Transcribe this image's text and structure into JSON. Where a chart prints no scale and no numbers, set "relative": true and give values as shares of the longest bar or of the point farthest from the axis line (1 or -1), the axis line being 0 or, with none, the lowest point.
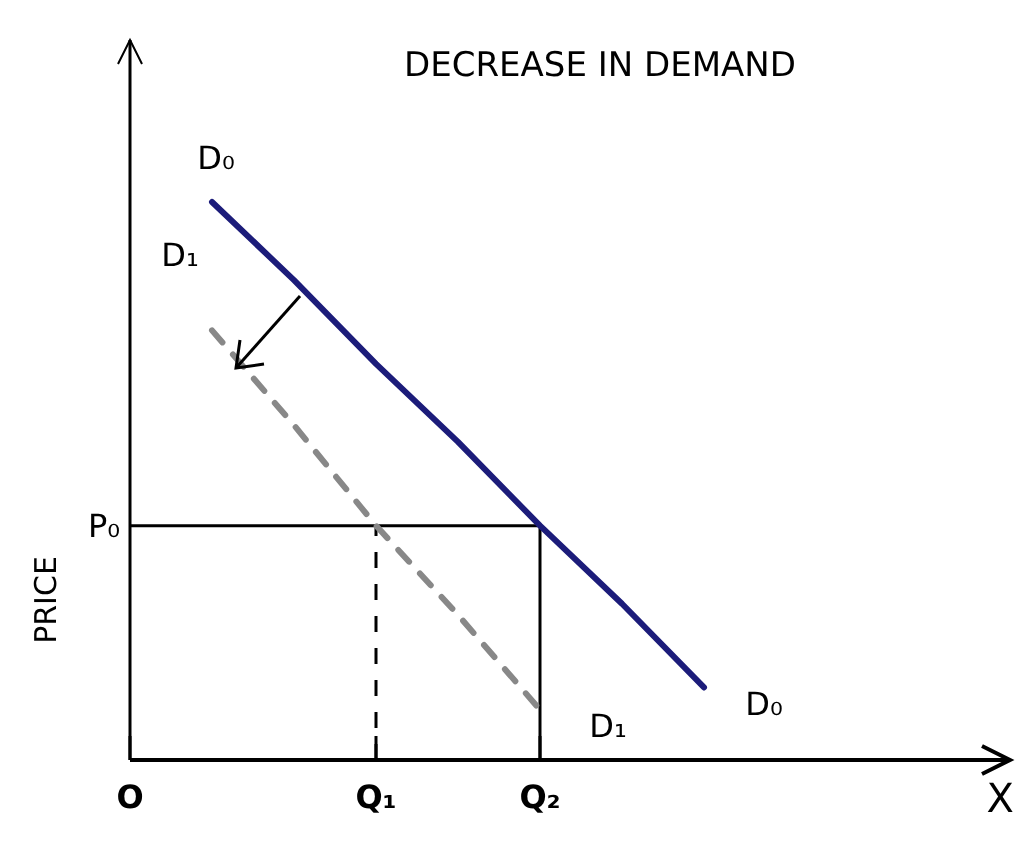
{
  "chart_data": {
    "type": "line",
    "title": "DECREASE IN DEMAND",
    "xlabel": "X",
    "ylabel": "PRICE",
    "relative": true,
    "categories": [
      "O",
      null,
      null,
      "Q₁",
      null,
      "Q₂",
      null,
      null,
      null,
      null,
      null
    ],
    "series": [
      {
        "name": "D₀",
        "color": "#1c1c7a",
        "values": [
          null,
          1,
          0.86,
          0.71,
          0.57,
          0.42,
          0.28,
          0.13,
          null,
          null,
          null
        ]
      },
      {
        "name": "D₁",
        "color": "#888888",
        "line_style": "dashed",
        "values": [
          null,
          0.77,
          0.6,
          0.42,
          0.26,
          0.09,
          null,
          null,
          null,
          null,
          null
        ]
      }
    ],
    "ref_lines": [
      {
        "axis": "y",
        "value": 0.42,
        "label": "P₀",
        "color": "#000000"
      },
      {
        "axis": "x",
        "value": "Q₁",
        "color": "#000000",
        "line_style": "dashed"
      },
      {
        "axis": "x",
        "value": "Q₂",
        "color": "#000000"
      }
    ],
    "marker": "none"
  }
}
